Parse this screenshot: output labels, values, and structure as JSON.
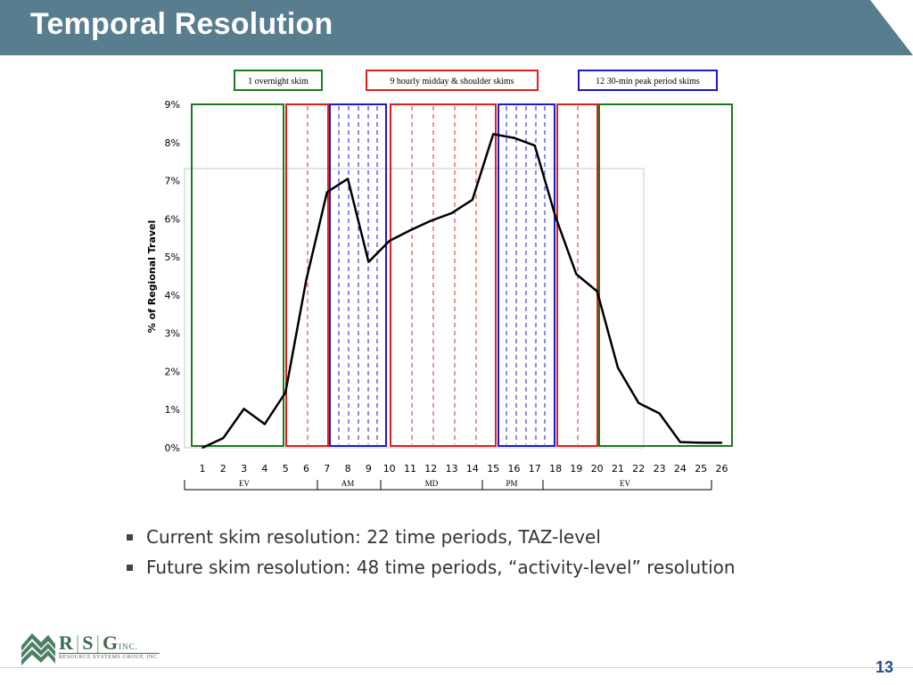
{
  "slide": {
    "title": "Temporal Resolution",
    "page_number": "13"
  },
  "legend_boxes": [
    {
      "label": "1 overnight  skim",
      "color": "#1e7a1e"
    },
    {
      "label": "9 hourly midday & shoulder skims",
      "color": "#e02020"
    },
    {
      "label": "12 30-min peak period  skims",
      "color": "#1a1ad0"
    }
  ],
  "periods": [
    {
      "label": "EV"
    },
    {
      "label": "AM"
    },
    {
      "label": "MD"
    },
    {
      "label": "PM"
    },
    {
      "label": "EV"
    }
  ],
  "bullets": [
    "Current skim resolution: 22 time periods, TAZ-level",
    "Future skim resolution: 48 time periods, “activity-level” resolution"
  ],
  "logo": {
    "r": "R",
    "s": "S",
    "g": "G",
    "inc": "INC.",
    "subtitle": "RESOURCE SYSTEMS GROUP, INC."
  },
  "chart_data": {
    "type": "line",
    "ylabel": "% of Regional Travel",
    "xlabel": "",
    "ylim": [
      0,
      9
    ],
    "yticks": [
      "0%",
      "1%",
      "2%",
      "3%",
      "4%",
      "5%",
      "6%",
      "7%",
      "8%",
      "9%"
    ],
    "categories": [
      "1",
      "2",
      "3",
      "4",
      "5",
      "6",
      "7",
      "8",
      "9",
      "10",
      "11",
      "12",
      "13",
      "14",
      "15",
      "16",
      "17",
      "18",
      "19",
      "20",
      "21",
      "22",
      "23",
      "24",
      "25",
      "26"
    ],
    "values": [
      0.0,
      0.25,
      1.02,
      0.62,
      1.45,
      4.4,
      6.7,
      7.05,
      4.87,
      5.42,
      5.7,
      5.95,
      6.15,
      6.5,
      8.22,
      8.12,
      7.92,
      6.05,
      4.55,
      4.1,
      2.1,
      1.17,
      0.9,
      0.15,
      0.13,
      0.13
    ],
    "series_color": "#000000",
    "grid": false
  }
}
